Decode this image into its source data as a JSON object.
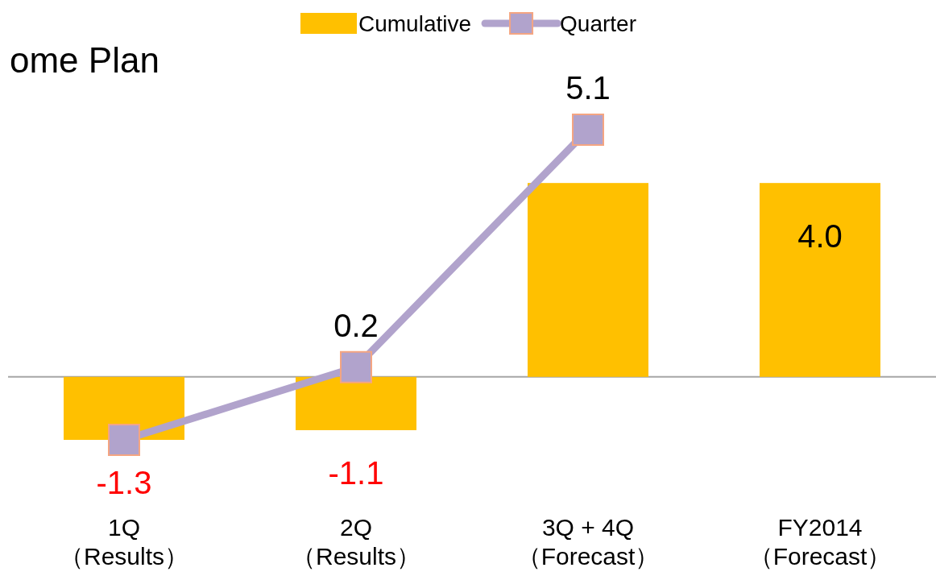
{
  "chart_data": {
    "type": "bar",
    "title": "ome Plan",
    "categories": [
      "1Q\n（Results）",
      "2Q\n（Results）",
      "3Q + 4Q\n（Forecast）",
      "FY2014\n（Forecast）"
    ],
    "series": [
      {
        "name": "Cumulative",
        "color": "#ffc000",
        "values": [
          -1.3,
          -1.1,
          4.0,
          4.0
        ],
        "value_labels": [
          "-1.3",
          "-1.1",
          null,
          "4.0"
        ]
      },
      {
        "name": "Quarter",
        "type": "line",
        "color": "#b1a3cc",
        "marker": "square",
        "values": [
          -1.3,
          0.2,
          5.1,
          null
        ],
        "value_labels": [
          null,
          "0.2",
          "5.1",
          null
        ]
      }
    ],
    "legend": "top",
    "grid": false
  }
}
